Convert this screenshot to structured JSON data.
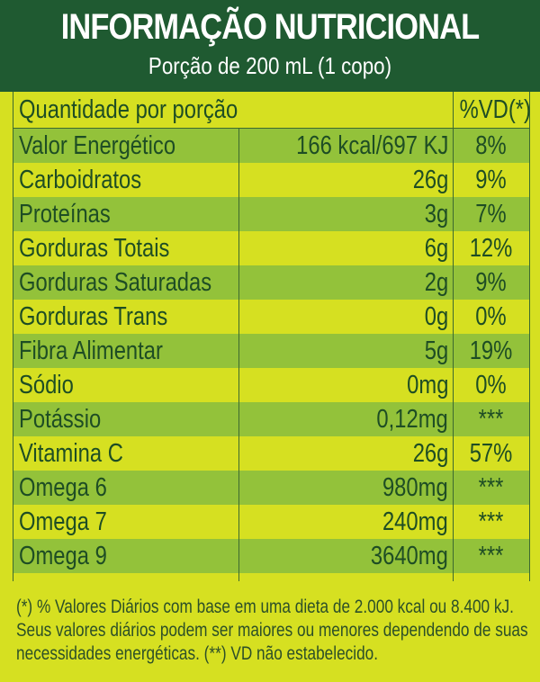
{
  "header": {
    "title": "INFORMAÇÃO NUTRICIONAL",
    "subtitle": "Porção de  200 mL (1 copo)"
  },
  "table": {
    "col_name": "Quantidade por porção",
    "col_vd": "%VD(*)",
    "rows": [
      {
        "name": "Valor Energético",
        "amount": "166 kcal/697 KJ",
        "vd": "8%"
      },
      {
        "name": "Carboidratos",
        "amount": "26g",
        "vd": "9%"
      },
      {
        "name": "Proteínas",
        "amount": "3g",
        "vd": "7%"
      },
      {
        "name": "Gorduras Totais",
        "amount": "6g",
        "vd": "12%"
      },
      {
        "name": "Gorduras Saturadas",
        "amount": "2g",
        "vd": "9%"
      },
      {
        "name": "Gorduras Trans",
        "amount": "0g",
        "vd": "0%"
      },
      {
        "name": "Fibra Alimentar",
        "amount": "5g",
        "vd": "19%"
      },
      {
        "name": "Sódio",
        "amount": "0mg",
        "vd": "0%"
      },
      {
        "name": "Potássio",
        "amount": "0,12mg",
        "vd": "***"
      },
      {
        "name": "Vitamina C",
        "amount": "26g",
        "vd": "57%"
      },
      {
        "name": "Omega 6",
        "amount": "980mg",
        "vd": "***"
      },
      {
        "name": "Omega 7",
        "amount": "240mg",
        "vd": "***"
      },
      {
        "name": "Omega 9",
        "amount": "3640mg",
        "vd": "***"
      }
    ]
  },
  "footer": {
    "line1": "(*) % Valores Diários com base em uma dieta de 2.000 kcal ou 8.400 kJ.",
    "line2": "Seus valores diários podem ser maiores ou menores dependendo de suas",
    "line3": "necessidades energéticas. (**) VD não estabelecido."
  },
  "colors": {
    "header_bg": "#1f5a31",
    "background": "#d6e021",
    "stripe": "#93c23a",
    "text": "#1e4d24"
  }
}
